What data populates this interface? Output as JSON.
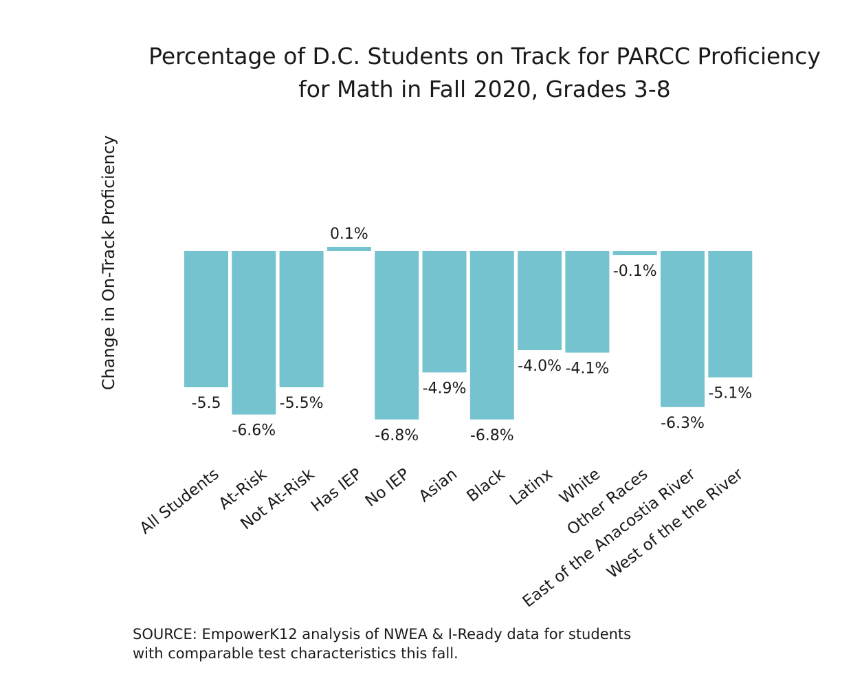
{
  "chart_data": {
    "type": "bar",
    "title_lines": [
      "Percentage of D.C. Students on Track for PARCC Proficiency",
      "for Math in Fall 2020, Grades 3-8"
    ],
    "ylabel": "Change in On-Track Proficiency",
    "xlabel": "",
    "categories": [
      "All Students",
      "At-Risk",
      "Not At-Risk",
      "Has IEP",
      "No IEP",
      "Asian",
      "Black",
      "Latinx",
      "White",
      "Other Races",
      "East of the Anacostia River",
      "West of the the River"
    ],
    "values": [
      -5.5,
      -6.6,
      -5.5,
      0.1,
      -6.8,
      -4.9,
      -6.8,
      -4.0,
      -4.1,
      -0.1,
      -6.3,
      -5.1
    ],
    "data_labels": [
      "-5.5",
      "-6.6%",
      "-5.5%",
      "0.1%",
      "-6.8%",
      "-4.9%",
      "-6.8%",
      "-4.0%",
      "-4.1%",
      "-0.1%",
      "-6.3%",
      "-5.1%"
    ],
    "bar_color": "#76c3d0",
    "grid": false,
    "legend": "none"
  },
  "source_lines": [
    "SOURCE: EmpowerK12 analysis of NWEA & I-Ready data for students",
    "with comparable test characteristics this fall."
  ]
}
